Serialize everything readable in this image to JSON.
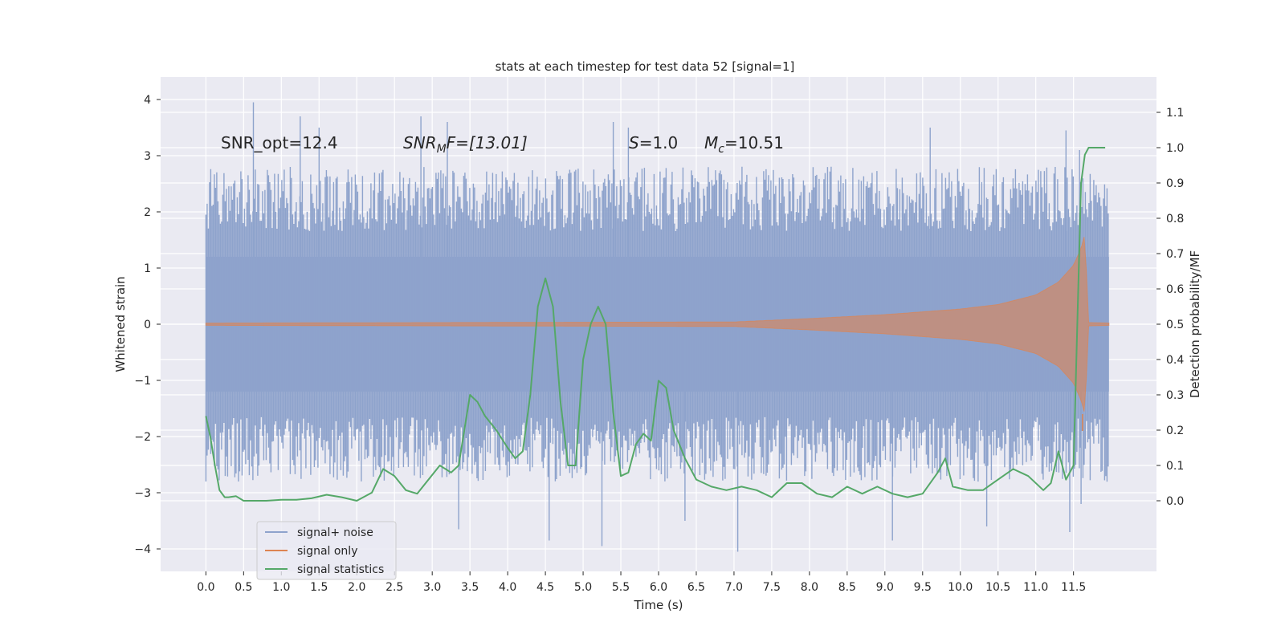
{
  "chart_data": {
    "type": "line",
    "title": "stats at each timestep for test data 52 [signal=1]",
    "xlabel": "Time (s)",
    "ylabel": "Whitened strain",
    "ylabel_right": "Detection probability/MF",
    "xlim": [
      -0.6,
      12.6
    ],
    "ylim": [
      -4.4,
      4.4
    ],
    "ylim_right": [
      -0.2,
      1.2
    ],
    "x_ticks": [
      0.0,
      0.5,
      1.0,
      1.5,
      2.0,
      2.5,
      3.0,
      3.5,
      4.0,
      4.5,
      5.0,
      5.5,
      6.0,
      6.5,
      7.0,
      7.5,
      8.0,
      8.5,
      9.0,
      9.5,
      10.0,
      10.5,
      11.0,
      11.5
    ],
    "x_tick_labels": [
      "0.0",
      "0.5",
      "1.0",
      "1.5",
      "2.0",
      "2.5",
      "3.0",
      "3.5",
      "4.0",
      "4.5",
      "5.0",
      "5.5",
      "6.0",
      "6.5",
      "7.0",
      "7.5",
      "8.0",
      "8.5",
      "9.0",
      "9.5",
      "10.0",
      "10.5",
      "11.0",
      "11.5"
    ],
    "y_ticks": [
      -4,
      -3,
      -2,
      -1,
      0,
      1,
      2,
      3,
      4
    ],
    "y_tick_labels": [
      "−4",
      "−3",
      "−2",
      "−1",
      "0",
      "1",
      "2",
      "3",
      "4"
    ],
    "y_ticks_right": [
      0.0,
      0.1,
      0.2,
      0.3,
      0.4,
      0.5,
      0.6,
      0.7,
      0.8,
      0.9,
      1.0,
      1.1
    ],
    "y_tick_labels_right": [
      "0.0",
      "0.1",
      "0.2",
      "0.3",
      "0.4",
      "0.5",
      "0.6",
      "0.7",
      "0.8",
      "0.9",
      "1.0",
      "1.1"
    ],
    "grid": true,
    "legend_position": "lower-left",
    "annotations": {
      "snr_opt": "SNR_opt=12.4",
      "snr_mf_sym": "SNR",
      "snr_mf_sub": "M",
      "snr_mf_rest": "F=[13.01]",
      "s_sym": "S",
      "s_rest": "=1.0",
      "mc_sym": "M",
      "mc_sub": "c",
      "mc_rest": "=10.51"
    },
    "series": [
      {
        "name": "signal+ noise",
        "axis": "left",
        "style": "noise-band",
        "color": "#8ea3cc",
        "t_start": 0.0,
        "t_end": 11.97,
        "typical_envelope": 2.3,
        "y_min": -4.05,
        "y_max": 3.95,
        "spikes": [
          [
            0.63,
            3.95
          ],
          [
            1.25,
            3.7
          ],
          [
            1.5,
            3.5
          ],
          [
            2.85,
            3.7
          ],
          [
            3.2,
            3.6
          ],
          [
            5.4,
            3.6
          ],
          [
            5.6,
            3.5
          ],
          [
            9.6,
            3.5
          ],
          [
            11.4,
            3.45
          ],
          [
            3.35,
            -3.65
          ],
          [
            4.55,
            -3.85
          ],
          [
            5.25,
            -3.95
          ],
          [
            6.35,
            -3.5
          ],
          [
            7.05,
            -4.05
          ],
          [
            9.1,
            -3.85
          ],
          [
            10.35,
            -3.6
          ],
          [
            11.45,
            -3.7
          ],
          [
            11.58,
            3.1
          ],
          [
            11.6,
            -3.2
          ]
        ]
      },
      {
        "name": "signal only",
        "axis": "left",
        "style": "chirp",
        "color": "#dd8452",
        "t_start": 0.0,
        "t_end": 11.97,
        "t_merger": 11.62,
        "amplitude_at": [
          [
            0.0,
            0.02
          ],
          [
            7.0,
            0.04
          ],
          [
            8.0,
            0.1
          ],
          [
            9.0,
            0.17
          ],
          [
            10.0,
            0.27
          ],
          [
            10.5,
            0.35
          ],
          [
            11.0,
            0.52
          ],
          [
            11.3,
            0.75
          ],
          [
            11.5,
            1.05
          ],
          [
            11.6,
            1.35
          ],
          [
            11.65,
            1.6
          ],
          [
            11.7,
            0.03
          ],
          [
            11.97,
            0.02
          ]
        ]
      },
      {
        "name": "signal statistics",
        "axis": "right",
        "style": "line",
        "color": "#55a868",
        "x": [
          0.0,
          0.06,
          0.12,
          0.18,
          0.25,
          0.3,
          0.4,
          0.5,
          0.6,
          0.7,
          0.8,
          1.0,
          1.2,
          1.4,
          1.6,
          1.8,
          2.0,
          2.2,
          2.35,
          2.5,
          2.65,
          2.8,
          2.95,
          3.1,
          3.25,
          3.35,
          3.5,
          3.6,
          3.7,
          3.85,
          4.0,
          4.1,
          4.2,
          4.3,
          4.4,
          4.5,
          4.6,
          4.7,
          4.8,
          4.9,
          5.0,
          5.1,
          5.2,
          5.3,
          5.4,
          5.5,
          5.6,
          5.7,
          5.8,
          5.9,
          6.0,
          6.1,
          6.2,
          6.35,
          6.5,
          6.7,
          6.9,
          7.1,
          7.3,
          7.5,
          7.7,
          7.9,
          8.1,
          8.3,
          8.5,
          8.7,
          8.9,
          9.1,
          9.3,
          9.5,
          9.7,
          9.8,
          9.9,
          10.1,
          10.3,
          10.5,
          10.7,
          10.9,
          11.1,
          11.2,
          11.3,
          11.4,
          11.5,
          11.55,
          11.6,
          11.65,
          11.7,
          11.8,
          11.92
        ],
        "values": [
          0.24,
          0.18,
          0.1,
          0.03,
          0.01,
          0.01,
          0.013,
          0.0,
          0.0,
          0.0,
          0.0,
          0.003,
          0.003,
          0.007,
          0.017,
          0.01,
          0.0,
          0.023,
          0.09,
          0.07,
          0.03,
          0.02,
          0.06,
          0.1,
          0.08,
          0.1,
          0.3,
          0.28,
          0.24,
          0.2,
          0.15,
          0.12,
          0.14,
          0.3,
          0.55,
          0.63,
          0.55,
          0.28,
          0.1,
          0.1,
          0.4,
          0.5,
          0.55,
          0.5,
          0.25,
          0.07,
          0.08,
          0.16,
          0.19,
          0.17,
          0.34,
          0.32,
          0.2,
          0.12,
          0.06,
          0.04,
          0.03,
          0.04,
          0.03,
          0.01,
          0.05,
          0.05,
          0.02,
          0.01,
          0.04,
          0.02,
          0.04,
          0.02,
          0.01,
          0.02,
          0.08,
          0.12,
          0.04,
          0.03,
          0.03,
          0.06,
          0.09,
          0.07,
          0.03,
          0.05,
          0.14,
          0.06,
          0.1,
          0.5,
          0.9,
          0.98,
          1.0,
          1.0,
          1.0
        ]
      }
    ]
  }
}
